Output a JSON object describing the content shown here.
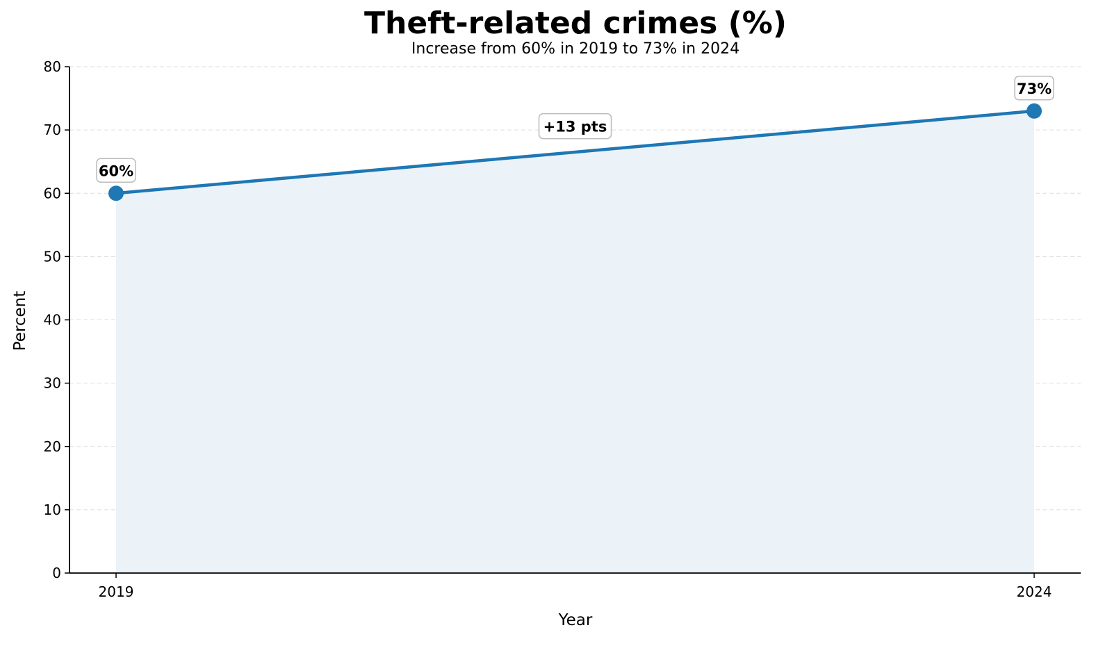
{
  "chart_data": {
    "type": "area",
    "title": "Theft-related crimes (%)",
    "subtitle": "Increase from 60% in 2019 to 73% in 2024",
    "xlabel": "Year",
    "ylabel": "Percent",
    "categories": [
      "2019",
      "2024"
    ],
    "values": [
      60,
      73
    ],
    "point_labels": [
      "60%",
      "73%"
    ],
    "annotation": "+13 pts",
    "ylim": [
      0,
      80
    ],
    "yticks": [
      0,
      10,
      20,
      30,
      40,
      50,
      60,
      70,
      80
    ],
    "grid": "horizontal dashed",
    "colors": {
      "line": "#1f77b4",
      "fill": "#ebf3f9",
      "grid": "#dddddd"
    }
  }
}
